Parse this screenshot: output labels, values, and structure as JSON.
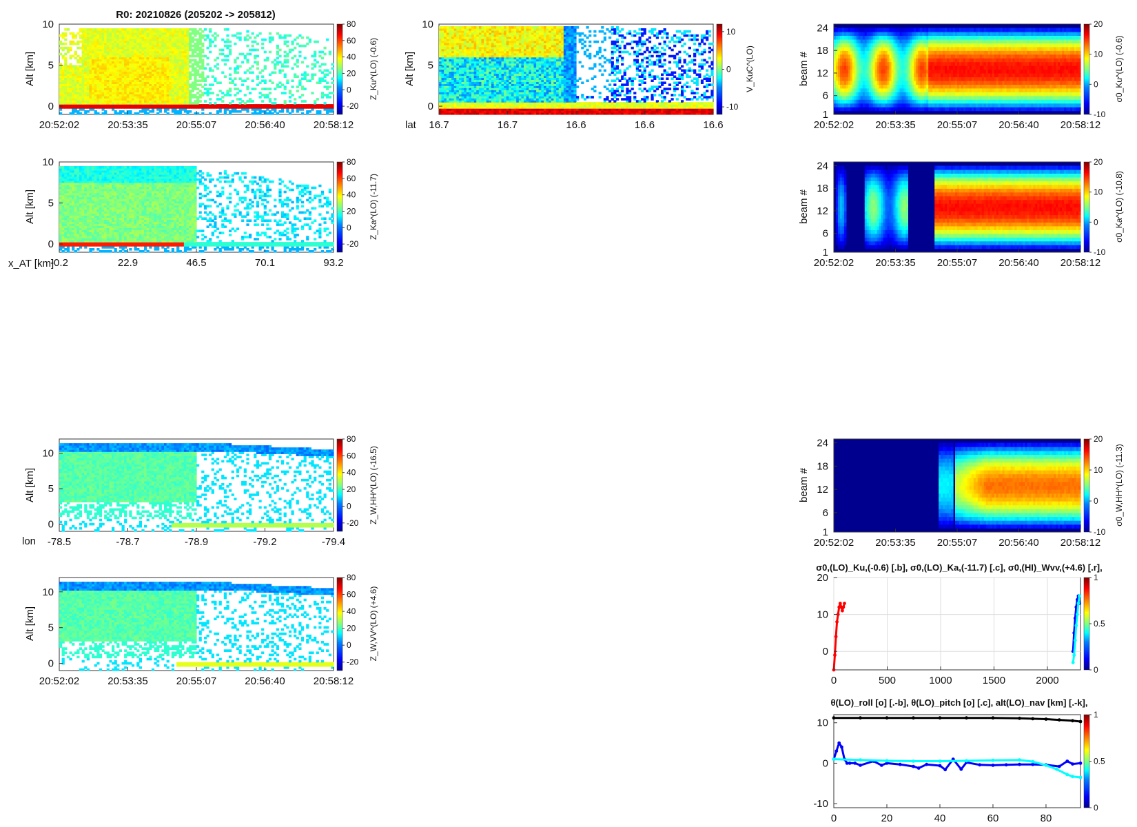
{
  "figure": {
    "title": "R0:  20210826 (205202 -> 205812)"
  },
  "colors": {
    "jet": [
      "#00008f",
      "#0000ff",
      "#0080ff",
      "#00ffff",
      "#80ff80",
      "#ffff00",
      "#ff8000",
      "#ff0000",
      "#800000"
    ],
    "series_b": "#0000ff",
    "series_c": "#00ffff",
    "series_r": "#ff0000",
    "series_k": "#000000"
  },
  "chart_data": [
    {
      "id": "zku",
      "type": "heatmap",
      "ylabel": "Alt [km]",
      "yticks": [
        "0",
        "5",
        "10"
      ],
      "xticks": [
        "20:52:02",
        "20:53:35",
        "20:55:07",
        "20:56:40",
        "20:58:12"
      ],
      "colorbar": {
        "ticks": [
          "80",
          "60",
          "40",
          "20",
          "0",
          "-20"
        ],
        "label": "Z_Ku^(LO) (-0.6)",
        "range": [
          -30,
          80
        ]
      }
    },
    {
      "id": "vkuc",
      "type": "heatmap",
      "ylabel": "Alt [km]",
      "yticks": [
        "0",
        "5",
        "10"
      ],
      "xaxis_name": "lat",
      "xticks": [
        "16.7",
        "16.7",
        "16.6",
        "16.6",
        "16.6"
      ],
      "colorbar": {
        "ticks": [
          "10",
          "0",
          "-10"
        ],
        "label": "V_KuC^(LO)",
        "range": [
          -12,
          12
        ]
      }
    },
    {
      "id": "sku",
      "type": "heatmap",
      "ylabel": "beam #",
      "yticks": [
        "1",
        "6",
        "12",
        "18",
        "24"
      ],
      "xticks": [
        "20:52:02",
        "20:53:35",
        "20:55:07",
        "20:56:40",
        "20:58:12"
      ],
      "colorbar": {
        "ticks": [
          "20",
          "10",
          "0",
          "-10"
        ],
        "label": "σ0_Ku^(LO) (-0.6)",
        "range": [
          -10,
          20
        ]
      }
    },
    {
      "id": "zka",
      "type": "heatmap",
      "ylabel": "Alt [km]",
      "yticks": [
        "0",
        "5",
        "10"
      ],
      "xaxis_name": "x_AT [km]",
      "xticks": [
        "-0.2",
        "22.9",
        "46.5",
        "70.1",
        "93.2"
      ],
      "colorbar": {
        "ticks": [
          "80",
          "60",
          "40",
          "20",
          "0",
          "-20"
        ],
        "label": "Z_Ka^(LO) (-11.7)",
        "range": [
          -30,
          80
        ]
      }
    },
    {
      "id": "ska",
      "type": "heatmap",
      "ylabel": "beam #",
      "yticks": [
        "1",
        "6",
        "12",
        "18",
        "24"
      ],
      "xticks": [
        "20:52:02",
        "20:53:35",
        "20:55:07",
        "20:56:40",
        "20:58:12"
      ],
      "colorbar": {
        "ticks": [
          "20",
          "10",
          "0",
          "-10"
        ],
        "label": "σ0_Ka^(LO) (-10.8)",
        "range": [
          -10,
          20
        ]
      }
    },
    {
      "id": "zwhh",
      "type": "heatmap",
      "ylabel": "Alt [km]",
      "yticks": [
        "0",
        "5",
        "10"
      ],
      "xaxis_name": "lon",
      "xticks": [
        "-78.5",
        "-78.7",
        "-78.9",
        "-79.2",
        "-79.4"
      ],
      "colorbar": {
        "ticks": [
          "80",
          "60",
          "40",
          "20",
          "0",
          "-20"
        ],
        "label": "Z_W,HH^(LO) (-16.5)",
        "range": [
          -30,
          80
        ]
      }
    },
    {
      "id": "swhh",
      "type": "heatmap",
      "ylabel": "beam #",
      "yticks": [
        "1",
        "6",
        "12",
        "18",
        "24"
      ],
      "xticks": [
        "20:52:02",
        "20:53:35",
        "20:55:07",
        "20:56:40",
        "20:58:12"
      ],
      "colorbar": {
        "ticks": [
          "20",
          "10",
          "0",
          "-10"
        ],
        "label": "σ0_W,HH^(LO) (-11.3)",
        "range": [
          -10,
          20
        ]
      }
    },
    {
      "id": "zwvv",
      "type": "heatmap",
      "ylabel": "Alt [km]",
      "yticks": [
        "0",
        "5",
        "10"
      ],
      "xticks": [
        "20:52:02",
        "20:53:35",
        "20:55:07",
        "20:56:40",
        "20:58:12"
      ],
      "colorbar": {
        "ticks": [
          "80",
          "60",
          "40",
          "20",
          "0",
          "-20"
        ],
        "label": "Z_W,VV^(LO) (+4.6)",
        "range": [
          -30,
          80
        ]
      }
    },
    {
      "id": "sigmaline",
      "type": "scatter",
      "title": "σ0,(LO)_Ku,(-0.6) [.b],  σ0,(LO)_Ka,(-11.7) [.c],  σ0,(HI)_Wvv,(+4.6) [.r],",
      "xticks": [
        "0",
        "500",
        "1000",
        "1500",
        "2000"
      ],
      "yticks": [
        "0",
        "10",
        "20"
      ],
      "xlim": [
        0,
        2310
      ],
      "ylim": [
        -5,
        20
      ],
      "grid": true,
      "colorbar": {
        "ticks": [
          "1",
          "0.5",
          "0"
        ]
      },
      "series": [
        {
          "marker": ".r",
          "x": [
            0,
            10,
            20,
            30,
            40,
            50,
            60,
            70,
            80,
            90,
            100
          ],
          "y": [
            -5,
            -1,
            4,
            8,
            10,
            12,
            13,
            12,
            11,
            12,
            13
          ]
        },
        {
          "marker": ".b",
          "x": [
            2240,
            2250,
            2260,
            2270,
            2280,
            2290,
            2300
          ],
          "y": [
            0,
            5,
            9,
            12,
            14,
            15,
            13
          ]
        },
        {
          "marker": ".c",
          "x": [
            2240,
            2250,
            2260,
            2270,
            2280,
            2290,
            2300
          ],
          "y": [
            -3,
            -1,
            3,
            7,
            10,
            13,
            15
          ]
        }
      ]
    },
    {
      "id": "navline",
      "type": "line",
      "title": "θ(LO)_roll [o] [.-b],  θ(LO)_pitch [o] [.c],  alt(LO)_nav [km] [.-k],",
      "xticks": [
        "0",
        "20",
        "40",
        "60",
        "80"
      ],
      "yticks": [
        "-10",
        "0",
        "10"
      ],
      "xlim": [
        0,
        93
      ],
      "ylim": [
        -11,
        12
      ],
      "colorbar": {
        "ticks": [
          "1",
          "0.5",
          "0"
        ]
      },
      "series": [
        {
          "marker": ".-k",
          "x": [
            0,
            10,
            20,
            30,
            40,
            50,
            60,
            70,
            75,
            80,
            85,
            90,
            93
          ],
          "y": [
            11.2,
            11.2,
            11.2,
            11.2,
            11.2,
            11.2,
            11.2,
            11.1,
            11.0,
            10.9,
            10.7,
            10.5,
            10.3
          ]
        },
        {
          "marker": ".-b",
          "x": [
            0,
            1,
            2,
            3,
            4,
            5,
            6,
            8,
            10,
            15,
            18,
            20,
            25,
            30,
            32,
            35,
            40,
            42,
            45,
            48,
            50,
            55,
            60,
            65,
            70,
            75,
            80,
            85,
            88,
            90,
            93
          ],
          "y": [
            1,
            3,
            5,
            4,
            1,
            0,
            0,
            0,
            -0.5,
            0.5,
            -0.5,
            0,
            -0.3,
            -0.8,
            -1.2,
            -0.3,
            -0.6,
            -1.6,
            1,
            -1.5,
            0.2,
            -0.4,
            -0.5,
            -0.4,
            -0.3,
            -0.3,
            -0.4,
            -0.8,
            0.5,
            -0.2,
            0
          ]
        },
        {
          "marker": ".c",
          "x": [
            0,
            10,
            20,
            30,
            40,
            50,
            60,
            70,
            75,
            80,
            84,
            88,
            90,
            93
          ],
          "y": [
            1,
            0.8,
            0.6,
            0.5,
            0.5,
            0.6,
            0.7,
            0.8,
            0.4,
            -0.5,
            -1.5,
            -2.8,
            -3.3,
            -3.5
          ]
        }
      ]
    }
  ]
}
